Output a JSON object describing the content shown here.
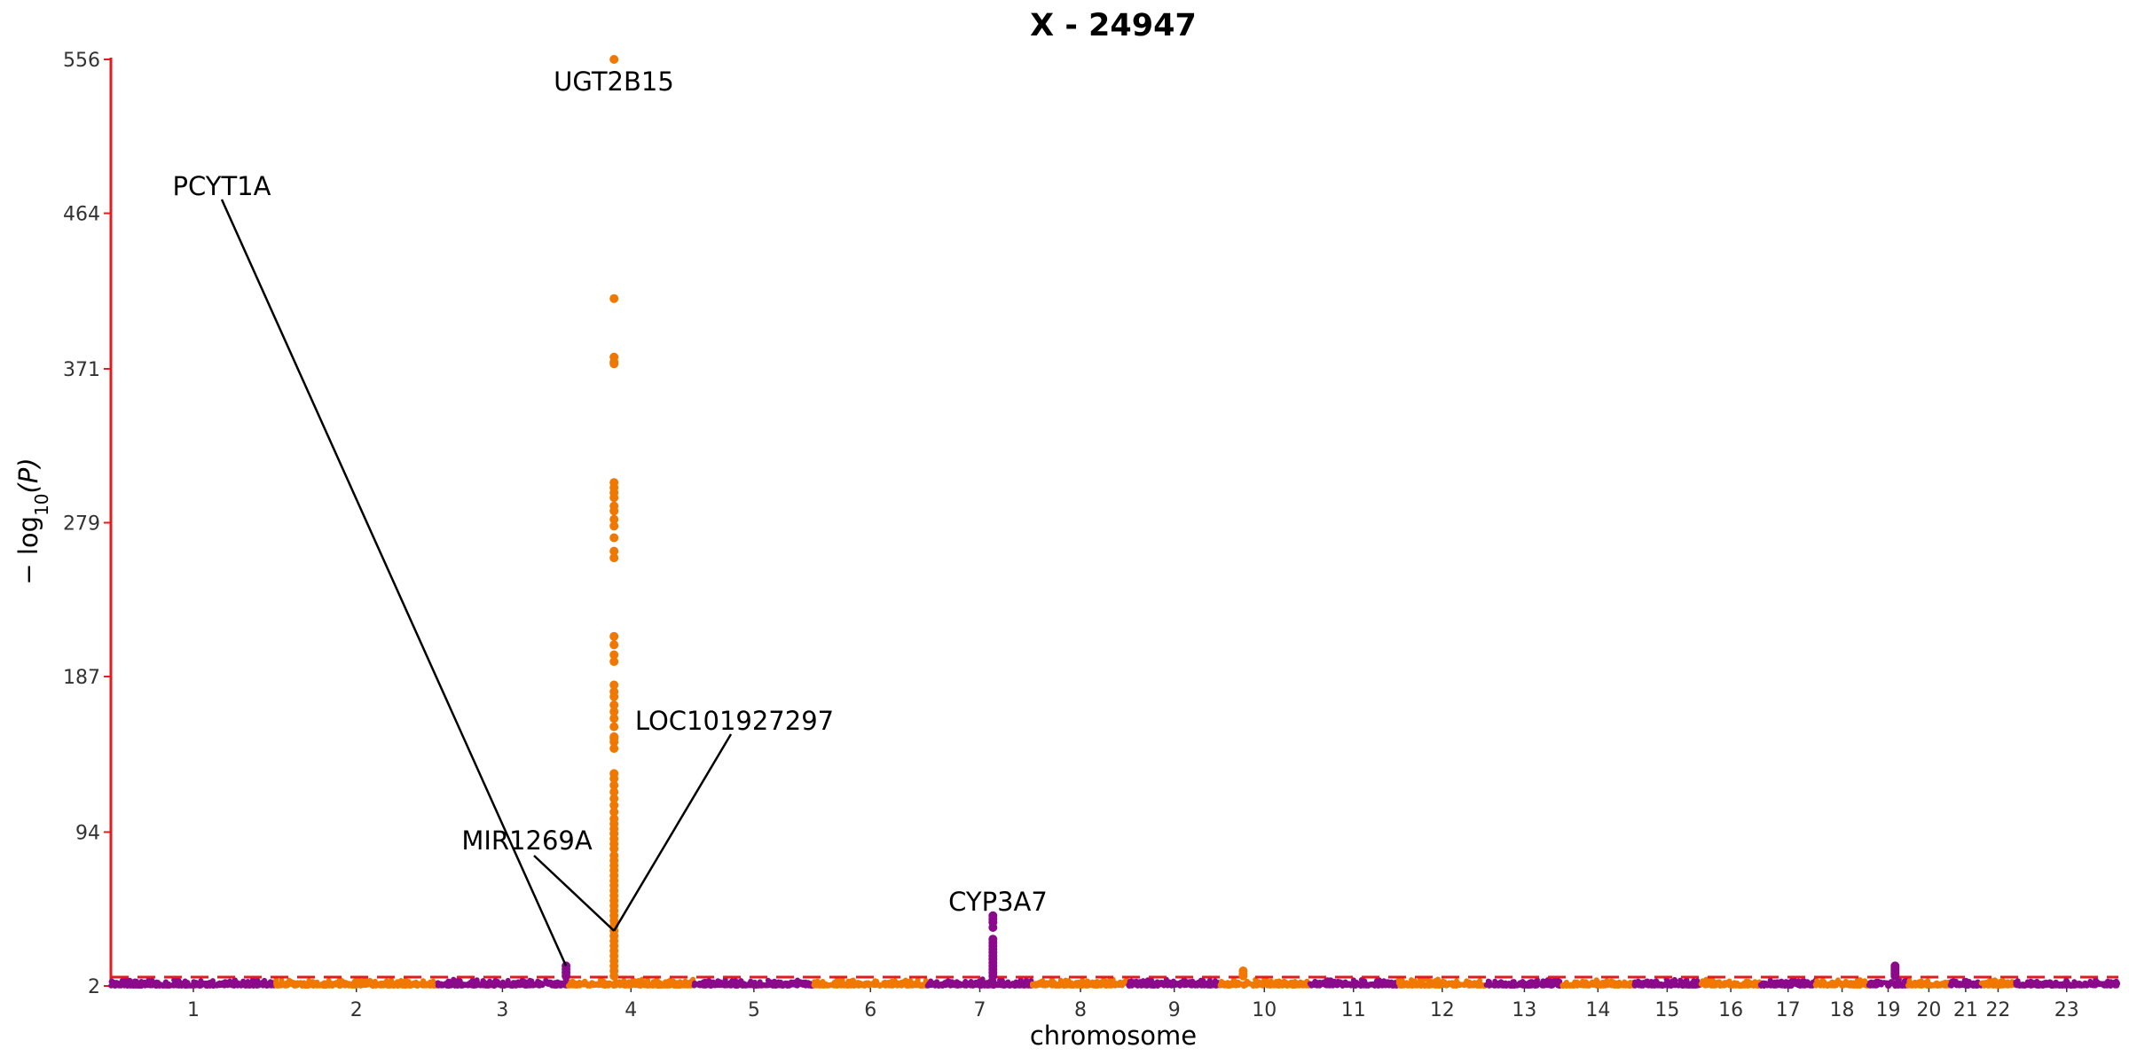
{
  "chart_data": {
    "type": "scatter",
    "title": "X - 24947",
    "xlabel": "chromosome",
    "ylabel": "− log10(P)",
    "ylabel_parts": {
      "prefix": "− log",
      "sub": "10",
      "suffix": "(P)"
    },
    "y_ticks": [
      2,
      94,
      187,
      279,
      371,
      464,
      556
    ],
    "ylim": [
      2,
      556
    ],
    "chromosomes": [
      "1",
      "2",
      "3",
      "4",
      "5",
      "6",
      "7",
      "8",
      "9",
      "10",
      "11",
      "12",
      "13",
      "14",
      "15",
      "16",
      "17",
      "18",
      "19",
      "20",
      "21",
      "22",
      "23"
    ],
    "chromosome_lengths_mb": [
      249,
      243,
      198,
      190,
      181,
      171,
      159,
      145,
      138,
      134,
      135,
      133,
      115,
      107,
      102,
      90,
      83,
      80,
      59,
      64,
      47,
      51,
      156
    ],
    "colors": {
      "odd_chromosomes": "#8b0a8b",
      "even_chromosomes": "#f07800",
      "axis": "#e41a1c",
      "threshold": "#e41a1c",
      "connector": "#000000"
    },
    "significance_threshold": 7.3,
    "grid": false,
    "legend": "none",
    "peaks": [
      {
        "chromosome": "4",
        "pos_mb": 69.5,
        "values": [
          556,
          413,
          378,
          375,
          374,
          303,
          300,
          297,
          294,
          289,
          286,
          281,
          277,
          270,
          262,
          258,
          211,
          206,
          200,
          196,
          182,
          178,
          175,
          170,
          166,
          162,
          157,
          151,
          150,
          148,
          144,
          129,
          126,
          122,
          118,
          114,
          110,
          106,
          102,
          99,
          96,
          93,
          90,
          87,
          84,
          80,
          77,
          74,
          71,
          68,
          65,
          62,
          59,
          56,
          53,
          50,
          47,
          44,
          41,
          38,
          35,
          32,
          29,
          26,
          23,
          20,
          17,
          14,
          11,
          8
        ]
      },
      {
        "chromosome": "3",
        "pos_mb": 195.0,
        "values": [
          14,
          12,
          10,
          8
        ]
      },
      {
        "chromosome": "7",
        "pos_mb": 99.3,
        "values": [
          44,
          42,
          40,
          37,
          30,
          28,
          26,
          24,
          22,
          20,
          18,
          16,
          14,
          12,
          10,
          8
        ]
      },
      {
        "chromosome": "10",
        "pos_mb": 35.0,
        "values": [
          11,
          9,
          8
        ]
      },
      {
        "chromosome": "19",
        "pos_mb": 40.0,
        "values": [
          14,
          13,
          12,
          11,
          10,
          9,
          8
        ]
      }
    ],
    "annotations": [
      {
        "label": "UGT2B15",
        "chromosome": "4",
        "pos_mb": 69.5,
        "value": 556
      },
      {
        "label": "PCYT1A",
        "chromosome": "3",
        "pos_mb": 195.0,
        "value": 14
      },
      {
        "label": "LOC101927297",
        "chromosome": "4",
        "pos_mb": 69.5,
        "value": 35
      },
      {
        "label": "MIR1269A",
        "chromosome": "4",
        "pos_mb": 69.5,
        "value": 35
      },
      {
        "label": "CYP3A7",
        "chromosome": "7",
        "pos_mb": 99.3,
        "value": 44
      }
    ]
  }
}
